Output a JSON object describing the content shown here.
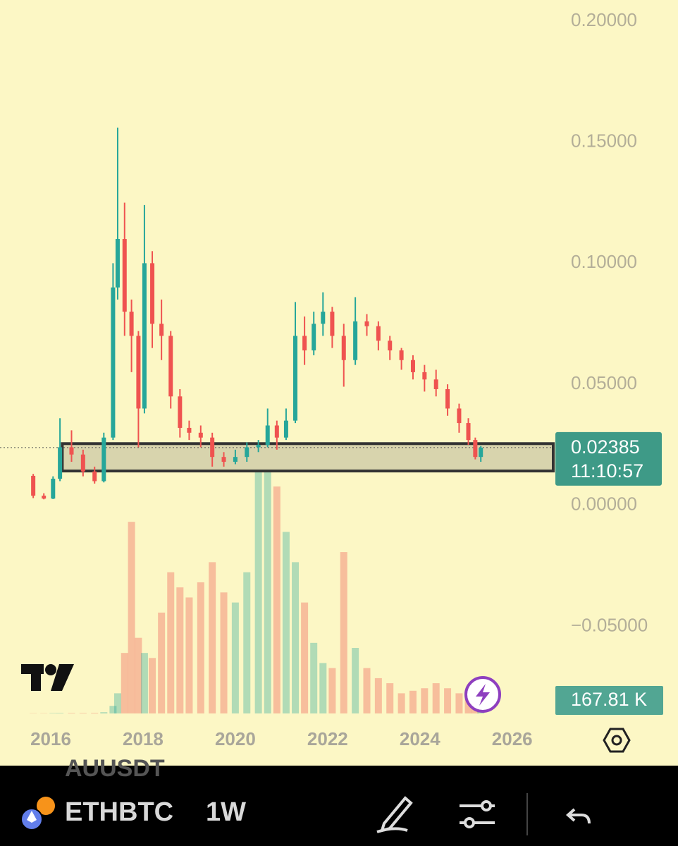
{
  "chart_data": {
    "type": "candlestick",
    "x": [
      2015.62,
      2015.85,
      2016.05,
      2016.2,
      2016.45,
      2016.7,
      2016.95,
      2017.15,
      2017.35,
      2017.45,
      2017.6,
      2017.75,
      2017.9,
      2018.03,
      2018.2,
      2018.4,
      2018.6,
      2018.8,
      2019.0,
      2019.25,
      2019.5,
      2019.75,
      2020.0,
      2020.25,
      2020.5,
      2020.7,
      2020.9,
      2021.1,
      2021.3,
      2021.5,
      2021.7,
      2021.9,
      2022.1,
      2022.35,
      2022.6,
      2022.85,
      2023.1,
      2023.35,
      2023.6,
      2023.85,
      2024.1,
      2024.35,
      2024.6,
      2024.85,
      2025.05,
      2025.2,
      2025.32
    ],
    "open": [
      0.0122,
      0.004,
      0.0028,
      0.011,
      0.024,
      0.021,
      0.014,
      0.01,
      0.028,
      0.09,
      0.11,
      0.08,
      0.07,
      0.04,
      0.1,
      0.075,
      0.07,
      0.045,
      0.032,
      0.03,
      0.028,
      0.02,
      0.018,
      0.02,
      0.024,
      0.025,
      0.033,
      0.028,
      0.035,
      0.07,
      0.064,
      0.075,
      0.08,
      0.07,
      0.06,
      0.076,
      0.074,
      0.068,
      0.064,
      0.06,
      0.055,
      0.052,
      0.048,
      0.04,
      0.034,
      0.027,
      0.02
    ],
    "high": [
      0.013,
      0.005,
      0.012,
      0.036,
      0.031,
      0.023,
      0.016,
      0.03,
      0.1,
      0.156,
      0.125,
      0.085,
      0.072,
      0.124,
      0.105,
      0.085,
      0.072,
      0.048,
      0.035,
      0.033,
      0.03,
      0.022,
      0.023,
      0.026,
      0.027,
      0.04,
      0.035,
      0.04,
      0.084,
      0.078,
      0.08,
      0.088,
      0.082,
      0.075,
      0.086,
      0.079,
      0.076,
      0.07,
      0.065,
      0.062,
      0.058,
      0.056,
      0.05,
      0.042,
      0.036,
      0.028,
      0.0245
    ],
    "low": [
      0.003,
      0.0025,
      0.0026,
      0.01,
      0.018,
      0.012,
      0.009,
      0.0095,
      0.027,
      0.085,
      0.07,
      0.055,
      0.024,
      0.038,
      0.065,
      0.06,
      0.04,
      0.028,
      0.027,
      0.024,
      0.016,
      0.016,
      0.017,
      0.018,
      0.022,
      0.024,
      0.023,
      0.027,
      0.034,
      0.058,
      0.062,
      0.07,
      0.065,
      0.049,
      0.058,
      0.07,
      0.064,
      0.06,
      0.056,
      0.052,
      0.047,
      0.045,
      0.037,
      0.03,
      0.025,
      0.019,
      0.018
    ],
    "close": [
      0.004,
      0.0028,
      0.011,
      0.024,
      0.021,
      0.014,
      0.01,
      0.028,
      0.09,
      0.11,
      0.08,
      0.07,
      0.04,
      0.1,
      0.075,
      0.07,
      0.045,
      0.032,
      0.03,
      0.028,
      0.02,
      0.018,
      0.02,
      0.024,
      0.025,
      0.033,
      0.028,
      0.035,
      0.07,
      0.064,
      0.075,
      0.08,
      0.07,
      0.06,
      0.076,
      0.074,
      0.068,
      0.064,
      0.06,
      0.055,
      0.052,
      0.048,
      0.04,
      0.034,
      0.027,
      0.02,
      0.02385
    ],
    "volume": [
      5,
      5,
      8,
      10,
      10,
      10,
      12,
      25,
      150,
      400,
      1200,
      3800,
      1500,
      1200,
      1100,
      2000,
      2800,
      2500,
      2300,
      2600,
      3000,
      2400,
      2200,
      2800,
      5200,
      5000,
      4500,
      3600,
      3000,
      2200,
      1400,
      1000,
      900,
      3200,
      1300,
      900,
      700,
      600,
      400,
      450,
      500,
      600,
      500,
      400,
      450,
      500,
      167.81
    ],
    "up_color": "#26a69a",
    "down_color": "#ef5350",
    "background": "#fcf7c5",
    "xlim": [
      2014.9,
      2026.89
    ],
    "xticks": [
      2016,
      2018,
      2020,
      2022,
      2024,
      2026
    ],
    "ylim": [
      -0.0868,
      0.2087
    ],
    "yticks": [
      {
        "value": -0.05,
        "label": "−0.05000"
      },
      {
        "value": 0,
        "label": "0.00000"
      },
      {
        "value": 0.05,
        "label": "0.05000"
      },
      {
        "value": 0.1,
        "label": "0.10000"
      },
      {
        "value": 0.15,
        "label": "0.15000"
      },
      {
        "value": 0.2,
        "label": "0.20000"
      }
    ],
    "volume_lim": [
      0,
      5200
    ],
    "zone": {
      "low": 0.0142,
      "high": 0.0255,
      "x_start": 2016.25,
      "color": "#d8d4ad"
    },
    "last_price": 0.02385,
    "countdown": "11:10:57",
    "last_volume": {
      "value": 167.81,
      "label": "167.81 K"
    },
    "price_label_color": "#3e9a87",
    "volume_label_color": "#52a693"
  },
  "toolbar": {
    "prev_symbol": "AUUSDT",
    "symbol": "ETHBTC",
    "interval": "1W"
  }
}
